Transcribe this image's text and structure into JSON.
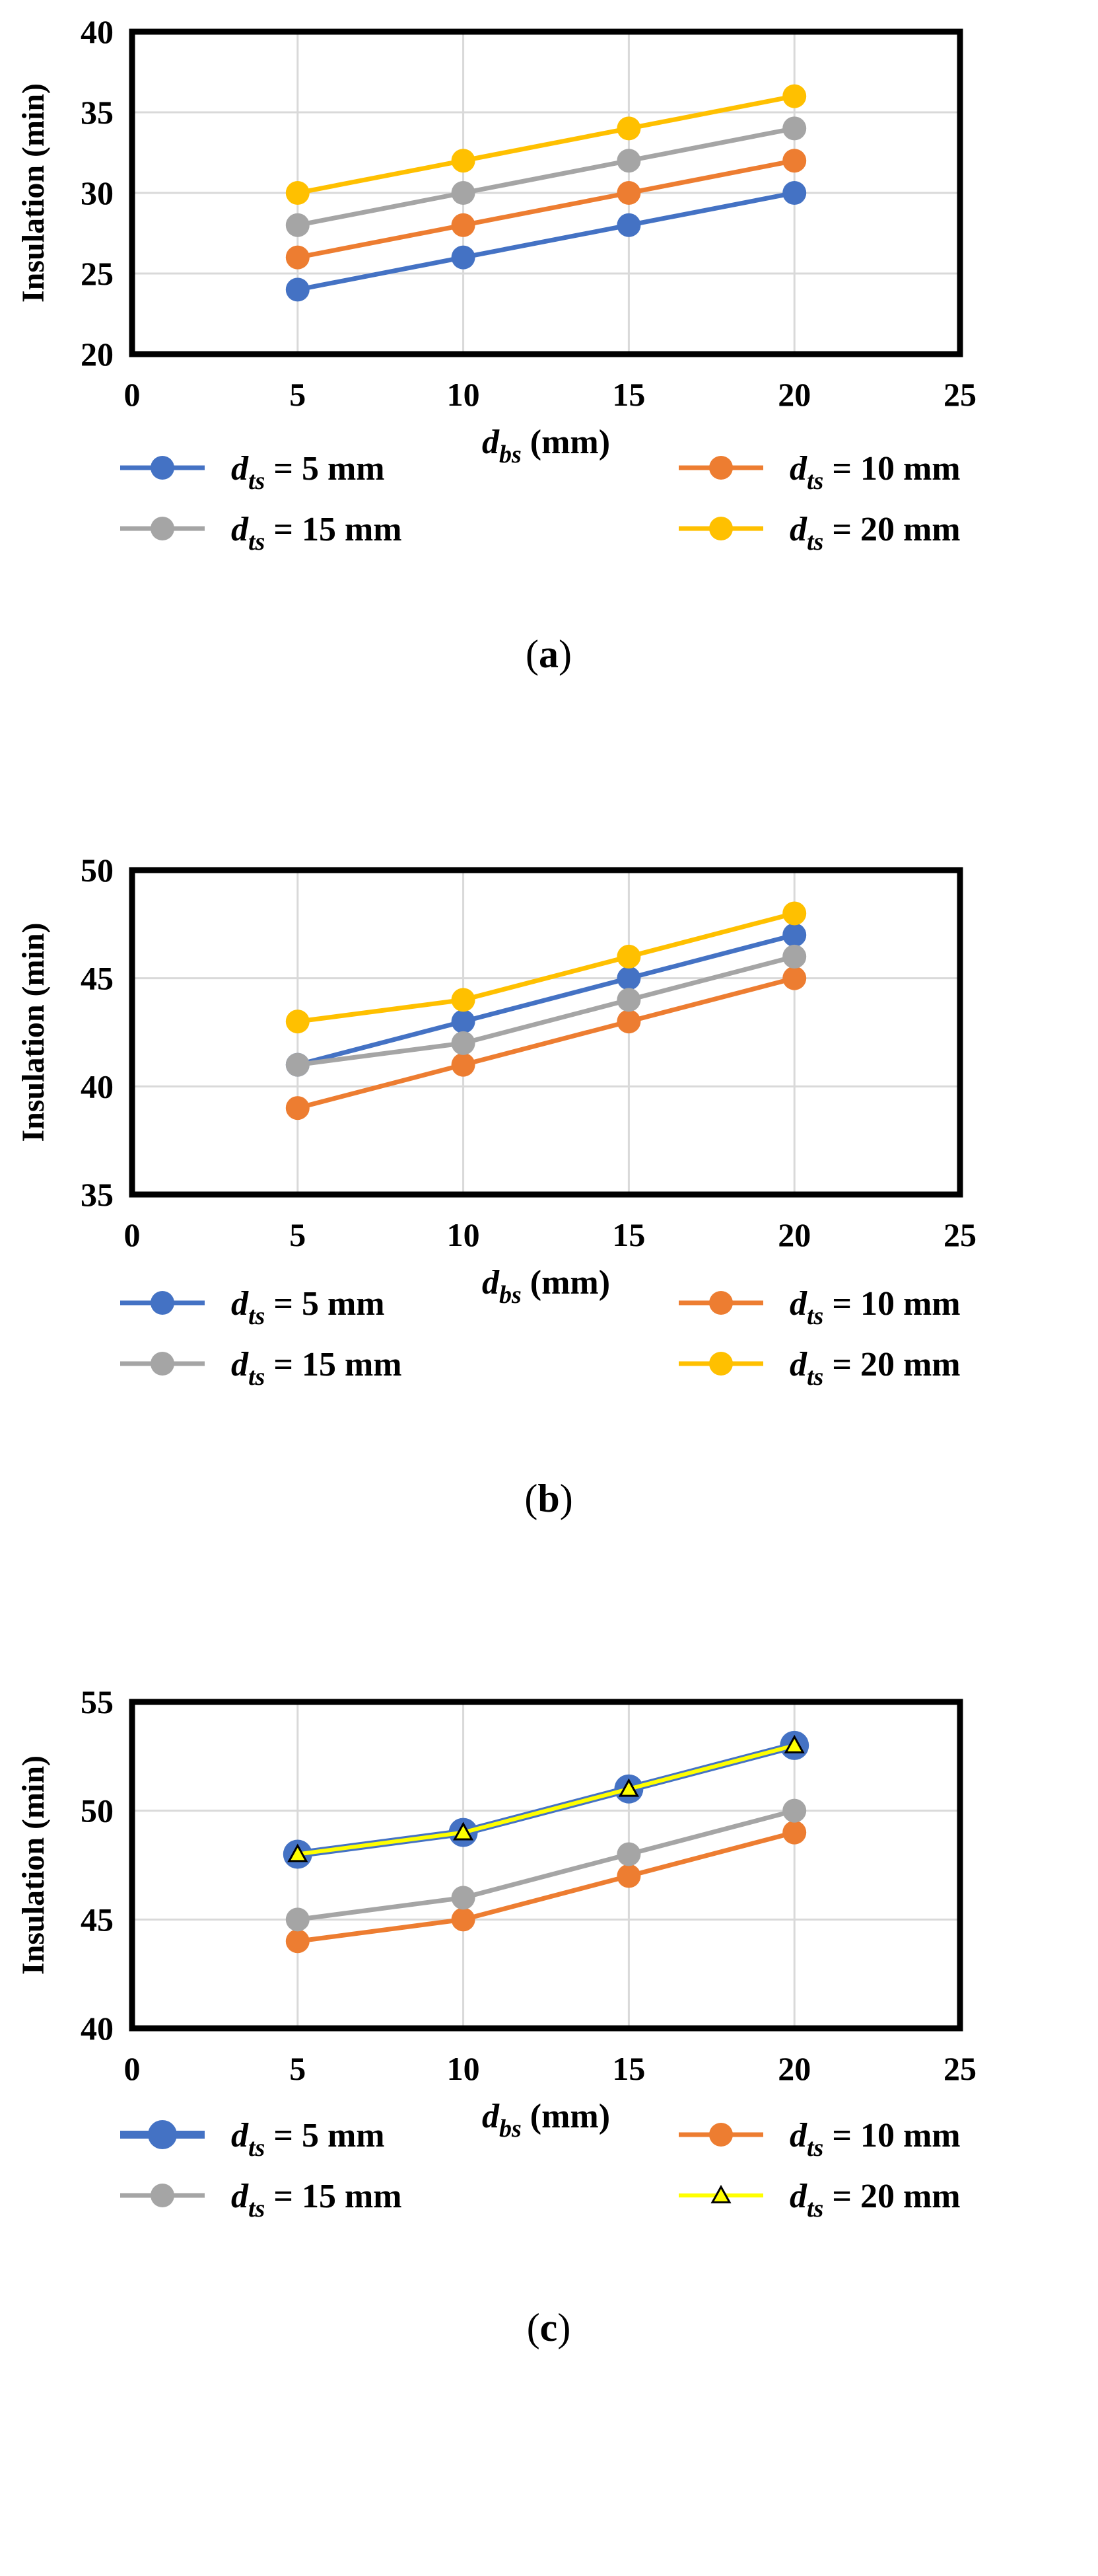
{
  "colors": {
    "blue": "#4472C4",
    "orange": "#ED7D31",
    "gray": "#A5A5A5",
    "gold": "#FFC000",
    "yellow": "#FFFF00",
    "grid": "#D9D9D9",
    "axis": "#000000",
    "text": "#000000"
  },
  "chart_data": [
    {
      "id": "a",
      "type": "line",
      "panel_label": "(a)",
      "panel_letter": "a",
      "x": [
        5,
        10,
        15,
        20
      ],
      "xlim": [
        0,
        25
      ],
      "xticks": [
        0,
        5,
        10,
        15,
        20,
        25
      ],
      "ylim": [
        20,
        40
      ],
      "yticks": [
        20,
        25,
        30,
        35,
        40
      ],
      "grid": true,
      "ylabel": "Insulation (min)",
      "xlabel": {
        "sym": "d",
        "sub": "bs",
        "rest": " (mm)"
      },
      "legend_position": "bottom",
      "series": [
        {
          "name": "dts = 5 mm",
          "sym": "d",
          "sub": "ts",
          "rest": " = 5 mm",
          "color_key": "blue",
          "marker": "circle",
          "values": [
            24,
            26,
            28,
            30
          ]
        },
        {
          "name": "dts = 10 mm",
          "sym": "d",
          "sub": "ts",
          "rest": " = 10 mm",
          "color_key": "orange",
          "marker": "circle",
          "values": [
            26,
            28,
            30,
            32
          ]
        },
        {
          "name": "dts = 15 mm",
          "sym": "d",
          "sub": "ts",
          "rest": " = 15 mm",
          "color_key": "gray",
          "marker": "circle",
          "values": [
            28,
            30,
            32,
            34
          ]
        },
        {
          "name": "dts = 20 mm",
          "sym": "d",
          "sub": "ts",
          "rest": " = 20 mm",
          "color_key": "gold",
          "marker": "circle",
          "values": [
            30,
            32,
            34,
            36
          ]
        }
      ]
    },
    {
      "id": "b",
      "type": "line",
      "panel_label": "(b)",
      "panel_letter": "b",
      "x": [
        5,
        10,
        15,
        20
      ],
      "xlim": [
        0,
        25
      ],
      "xticks": [
        0,
        5,
        10,
        15,
        20,
        25
      ],
      "ylim": [
        35,
        50
      ],
      "yticks": [
        35,
        40,
        45,
        50
      ],
      "grid": true,
      "ylabel": "Insulation (min)",
      "xlabel": {
        "sym": "d",
        "sub": "bs",
        "rest": " (mm)"
      },
      "legend_position": "bottom",
      "series": [
        {
          "name": "dts = 5 mm",
          "sym": "d",
          "sub": "ts",
          "rest": " = 5 mm",
          "color_key": "blue",
          "marker": "circle",
          "values": [
            41,
            43,
            45,
            47
          ]
        },
        {
          "name": "dts = 10 mm",
          "sym": "d",
          "sub": "ts",
          "rest": " = 10 mm",
          "color_key": "orange",
          "marker": "circle",
          "values": [
            39,
            41,
            43,
            45
          ]
        },
        {
          "name": "dts = 15 mm",
          "sym": "d",
          "sub": "ts",
          "rest": " = 15 mm",
          "color_key": "gray",
          "marker": "circle",
          "values": [
            41,
            42,
            44,
            46
          ]
        },
        {
          "name": "dts = 20 mm",
          "sym": "d",
          "sub": "ts",
          "rest": " = 20 mm",
          "color_key": "gold",
          "marker": "circle",
          "values": [
            43,
            44,
            46,
            48
          ]
        }
      ]
    },
    {
      "id": "c",
      "type": "line",
      "panel_label": "(c)",
      "panel_letter": "c",
      "x": [
        5,
        10,
        15,
        20
      ],
      "xlim": [
        0,
        25
      ],
      "xticks": [
        0,
        5,
        10,
        15,
        20,
        25
      ],
      "ylim": [
        40,
        55
      ],
      "yticks": [
        40,
        45,
        50,
        55
      ],
      "grid": true,
      "ylabel": "Insulation (min)",
      "xlabel": {
        "sym": "d",
        "sub": "bs",
        "rest": " (mm)"
      },
      "legend_position": "bottom",
      "series": [
        {
          "name": "dts = 5 mm",
          "sym": "d",
          "sub": "ts",
          "rest": " = 5 mm",
          "color_key": "blue",
          "marker": "circle-large",
          "values": [
            48,
            49,
            51,
            53
          ]
        },
        {
          "name": "dts = 10 mm",
          "sym": "d",
          "sub": "ts",
          "rest": " = 10 mm",
          "color_key": "orange",
          "marker": "circle",
          "values": [
            44,
            45,
            47,
            49
          ]
        },
        {
          "name": "dts = 15 mm",
          "sym": "d",
          "sub": "ts",
          "rest": " = 15 mm",
          "color_key": "gray",
          "marker": "circle",
          "values": [
            45,
            46,
            48,
            50
          ]
        },
        {
          "name": "dts = 20 mm",
          "sym": "d",
          "sub": "ts",
          "rest": " = 20 mm",
          "color_key": "yellow",
          "marker": "triangle",
          "values": [
            48,
            49,
            51,
            53
          ]
        }
      ]
    }
  ]
}
